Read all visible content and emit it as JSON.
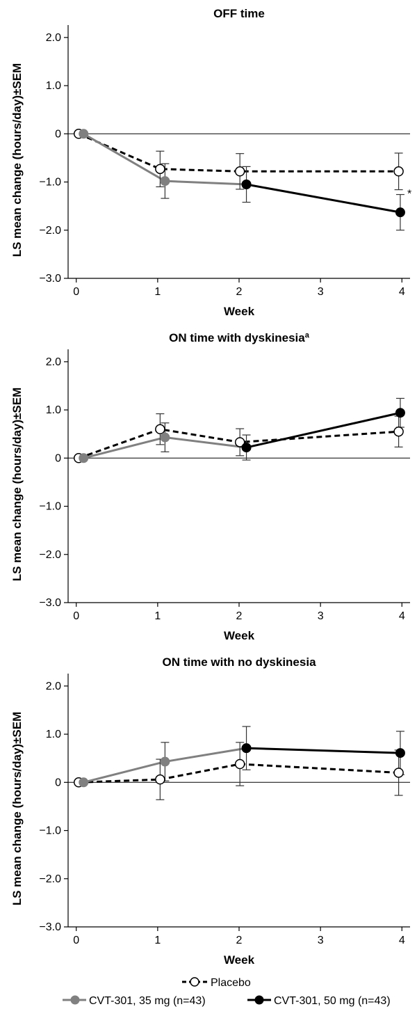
{
  "chart_data": [
    {
      "type": "line",
      "title": "OFF time",
      "title_superscript": "",
      "xlabel": "Week",
      "ylabel": "LS mean change (hours/day)±SEM",
      "xlim": [
        -0.1,
        4.1
      ],
      "ylim": [
        -3.0,
        2.2
      ],
      "xticks": [
        0,
        1,
        2,
        3,
        4
      ],
      "xtick_labels": [
        "0",
        "1",
        "2",
        "3",
        "4"
      ],
      "yticks": [
        2.0,
        1.0,
        0,
        -1.0,
        -2.0,
        -3.0
      ],
      "ytick_labels": [
        "2.0",
        "1.0",
        "0",
        "−1.0",
        "−2.0",
        "−3.0"
      ],
      "annotation": "*",
      "series": [
        {
          "name": "Placebo",
          "style": "dashed",
          "marker": "open",
          "color": "#000000",
          "x": [
            0.03,
            1.03,
            2.01,
            3.96
          ],
          "y": [
            0.0,
            -0.73,
            -0.78,
            -0.78
          ],
          "err": [
            0.0,
            0.37,
            0.37,
            0.38
          ]
        },
        {
          "name": "CVT-301, 35 mg (n=43)",
          "style": "solid",
          "marker": "filled",
          "color": "#808080",
          "x": [
            0.09,
            1.09,
            2.09
          ],
          "y": [
            0.0,
            -0.98,
            -1.05
          ],
          "err": [
            0.0,
            0.36,
            0.37
          ]
        },
        {
          "name": "CVT-301, 50 mg (n=43)",
          "style": "solid",
          "marker": "filled",
          "color": "#000000",
          "x": [
            2.09,
            3.98
          ],
          "y": [
            -1.05,
            -1.63
          ],
          "err": [
            null,
            0.37
          ]
        }
      ]
    },
    {
      "type": "line",
      "title": "ON time with dyskinesia",
      "title_superscript": "a",
      "xlabel": "Week",
      "ylabel": "LS mean change (hours/day)±SEM",
      "xlim": [
        -0.1,
        4.1
      ],
      "ylim": [
        -3.0,
        2.2
      ],
      "xticks": [
        0,
        1,
        2,
        3,
        4
      ],
      "xtick_labels": [
        "0",
        "1",
        "2",
        "3",
        "4"
      ],
      "yticks": [
        2.0,
        1.0,
        0,
        -1.0,
        -2.0,
        -3.0
      ],
      "ytick_labels": [
        "2.0",
        "1.0",
        "0",
        "−1.0",
        "−2.0",
        "−3.0"
      ],
      "annotation": "",
      "series": [
        {
          "name": "Placebo",
          "style": "dashed",
          "marker": "open",
          "color": "#000000",
          "x": [
            0.03,
            1.03,
            2.01,
            3.96
          ],
          "y": [
            0.0,
            0.6,
            0.33,
            0.55
          ],
          "err": [
            0.0,
            0.32,
            0.28,
            0.32
          ]
        },
        {
          "name": "CVT-301, 35 mg (n=43)",
          "style": "solid",
          "marker": "filled",
          "color": "#808080",
          "x": [
            0.09,
            1.09,
            2.09
          ],
          "y": [
            0.0,
            0.43,
            0.22
          ],
          "err": [
            0.0,
            0.3,
            0.26
          ]
        },
        {
          "name": "CVT-301, 50 mg (n=43)",
          "style": "solid",
          "marker": "filled",
          "color": "#000000",
          "x": [
            2.09,
            3.98
          ],
          "y": [
            0.22,
            0.94
          ],
          "err": [
            null,
            0.3
          ]
        }
      ]
    },
    {
      "type": "line",
      "title": "ON time with no dyskinesia",
      "title_superscript": "",
      "xlabel": "Week",
      "ylabel": "LS mean change (hours/day)±SEM",
      "xlim": [
        -0.1,
        4.1
      ],
      "ylim": [
        -3.0,
        2.2
      ],
      "xticks": [
        0,
        1,
        2,
        3,
        4
      ],
      "xtick_labels": [
        "0",
        "1",
        "2",
        "3",
        "4"
      ],
      "yticks": [
        2.0,
        1.0,
        0,
        -1.0,
        -2.0,
        -3.0
      ],
      "ytick_labels": [
        "2.0",
        "1.0",
        "0",
        "−1.0",
        "−2.0",
        "−3.0"
      ],
      "annotation": "",
      "series": [
        {
          "name": "Placebo",
          "style": "dashed",
          "marker": "open",
          "color": "#000000",
          "x": [
            0.03,
            1.03,
            2.01,
            3.96
          ],
          "y": [
            0.0,
            0.06,
            0.38,
            0.2
          ],
          "err": [
            0.0,
            0.42,
            0.45,
            0.47
          ]
        },
        {
          "name": "CVT-301, 35 mg (n=43)",
          "style": "solid",
          "marker": "filled",
          "color": "#808080",
          "x": [
            0.09,
            1.09,
            2.09
          ],
          "y": [
            0.0,
            0.43,
            0.71
          ],
          "err": [
            0.0,
            0.4,
            0.45
          ]
        },
        {
          "name": "CVT-301, 50 mg (n=43)",
          "style": "solid",
          "marker": "filled",
          "color": "#000000",
          "x": [
            2.09,
            3.98
          ],
          "y": [
            0.71,
            0.61
          ],
          "err": [
            null,
            0.45
          ]
        }
      ]
    }
  ],
  "legend": {
    "placebo": "Placebo",
    "cvt35": "CVT-301, 35 mg (n=43)",
    "cvt50": "CVT-301, 50 mg (n=43)",
    "colors": {
      "placebo": "#000000",
      "cvt35": "#808080",
      "cvt50": "#000000"
    }
  }
}
